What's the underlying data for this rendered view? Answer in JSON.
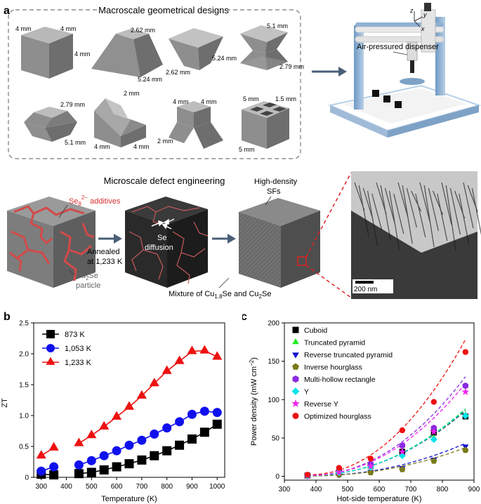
{
  "panel_labels": {
    "a": "a",
    "b": "b",
    "c": "c"
  },
  "macro": {
    "title": "Macroscale geometrical designs",
    "dims": {
      "cube": [
        "4 mm",
        "4 mm",
        "4 mm"
      ],
      "trunc": [
        "2.62 mm",
        "5.24 mm"
      ],
      "revtrunc": [
        "2.62 mm",
        "5.24 mm"
      ],
      "invhour": [
        "5.1 mm",
        "2.79 mm"
      ],
      "opthour": [
        "2.79 mm",
        "5.1 mm"
      ],
      "y": [
        "2 mm",
        "4 mm",
        "4 mm"
      ],
      "revy": [
        "4 mm",
        "4 mm",
        "2 mm"
      ],
      "hollow": [
        "5 mm",
        "1.5 mm",
        "5 mm"
      ]
    }
  },
  "printer": {
    "label": "Air-pressured dispenser",
    "axes": [
      "z",
      "y",
      "x"
    ]
  },
  "micro": {
    "title": "Microscale defect engineering",
    "additive": "Se",
    "additive_sub": "8",
    "additive_sup": "2−",
    "additive_rest": " additives",
    "annealed": "Annealed",
    "annealed_at": "at 1,233 K",
    "particle_main": "Cu",
    "particle_sub": "2",
    "particle_rest": "Se",
    "particle_line2": "particle",
    "se_diff_1": "Se",
    "se_diff_2": "diffusion",
    "sfs_1": "High-density",
    "sfs_2": "SFs",
    "mixture_pre": "Mixture of Cu",
    "mixture_sub1": "1.8",
    "mixture_mid": "Se and Cu",
    "mixture_sub2": "2",
    "mixture_post": "Se",
    "scalebar": "200 nm"
  },
  "chart_data": [
    {
      "type": "line",
      "panel": "b",
      "xlabel": "Temperature (K)",
      "ylabel": "ZT",
      "xlim": [
        270,
        1030
      ],
      "ylim": [
        0,
        2.5
      ],
      "xticks": [
        300,
        400,
        500,
        600,
        700,
        800,
        900,
        1000
      ],
      "yticks": [
        0,
        0.5,
        1.0,
        1.5,
        2.0,
        2.5
      ],
      "ytick_labels": [
        "0",
        "0.5",
        "1.0",
        "1.5",
        "2.0",
        "2.5"
      ],
      "legend_position": "top-left",
      "series": [
        {
          "name": "873 K",
          "color": "#000000",
          "marker": "square",
          "x": [
            300,
            350,
            450,
            500,
            550,
            600,
            650,
            700,
            750,
            800,
            850,
            900,
            950,
            1000
          ],
          "y": [
            0.05,
            0.04,
            0.06,
            0.08,
            0.12,
            0.17,
            0.22,
            0.28,
            0.35,
            0.43,
            0.52,
            0.62,
            0.73,
            0.86
          ]
        },
        {
          "name": "1,053 K",
          "color": "#1010ee",
          "marker": "circle",
          "x": [
            300,
            350,
            450,
            500,
            550,
            600,
            650,
            700,
            750,
            800,
            850,
            900,
            950,
            1000
          ],
          "y": [
            0.1,
            0.17,
            0.2,
            0.27,
            0.35,
            0.43,
            0.52,
            0.6,
            0.7,
            0.8,
            0.9,
            1.02,
            1.07,
            1.05
          ]
        },
        {
          "name": "1,233 K",
          "color": "#ee1111",
          "marker": "triangle",
          "x": [
            300,
            350,
            450,
            500,
            550,
            600,
            650,
            700,
            750,
            800,
            850,
            900,
            950,
            1000
          ],
          "y": [
            0.35,
            0.48,
            0.55,
            0.68,
            0.82,
            0.98,
            1.14,
            1.32,
            1.52,
            1.72,
            1.88,
            2.04,
            2.05,
            1.95
          ]
        }
      ]
    },
    {
      "type": "scatter",
      "panel": "c",
      "xlabel": "Hot-side temperature (K)",
      "ylabel_pre": "Power density (mW cm",
      "ylabel_sup": "−2",
      "ylabel_post": ")",
      "xlim": [
        300,
        900
      ],
      "ylim": [
        -5,
        200
      ],
      "xticks": [
        300,
        400,
        500,
        600,
        700,
        800,
        900
      ],
      "yticks": [
        0,
        50,
        100,
        150,
        200
      ],
      "legend_position": "top-left",
      "series": [
        {
          "name": "Cuboid",
          "color": "#000000",
          "marker": "square",
          "x": [
            373,
            473,
            573,
            673,
            773,
            873
          ],
          "y": [
            1,
            5,
            14,
            32,
            57,
            78
          ]
        },
        {
          "name": "Truncated pyramid",
          "color": "#22ee22",
          "marker": "triangle",
          "x": [
            373,
            473,
            573,
            673,
            773,
            873
          ],
          "y": [
            1,
            4,
            12,
            28,
            50,
            80
          ]
        },
        {
          "name": "Reverse truncated pyramid",
          "color": "#1515cc",
          "marker": "triangle-down",
          "x": [
            373,
            473,
            573,
            673,
            773,
            873
          ],
          "y": [
            0.5,
            2,
            6,
            11,
            22,
            39
          ]
        },
        {
          "name": "Inverse hourglass",
          "color": "#7a7a1a",
          "marker": "pentagon",
          "x": [
            373,
            473,
            573,
            673,
            773,
            873
          ],
          "y": [
            0.5,
            2,
            5,
            9,
            20,
            34
          ]
        },
        {
          "name": "Multi-hollow rectangle",
          "color": "#8a2be2",
          "marker": "hexagon",
          "x": [
            373,
            473,
            573,
            673,
            773,
            873
          ],
          "y": [
            1,
            6,
            16,
            40,
            63,
            118
          ]
        },
        {
          "name": "Y",
          "color": "#00e5ee",
          "marker": "diamond",
          "x": [
            373,
            473,
            573,
            673,
            773,
            873
          ],
          "y": [
            1,
            5,
            12,
            27,
            48,
            79
          ]
        },
        {
          "name": "Reverse Y",
          "color": "#ee22ee",
          "marker": "star",
          "x": [
            373,
            473,
            573,
            673,
            773,
            873
          ],
          "y": [
            1,
            5,
            13,
            32,
            58,
            110
          ]
        },
        {
          "name": "Optimized hourglass",
          "color": "#ee1111",
          "marker": "circle",
          "x": [
            373,
            473,
            573,
            673,
            773,
            873
          ],
          "y": [
            2,
            11,
            23,
            60,
            97,
            162
          ]
        }
      ]
    }
  ]
}
